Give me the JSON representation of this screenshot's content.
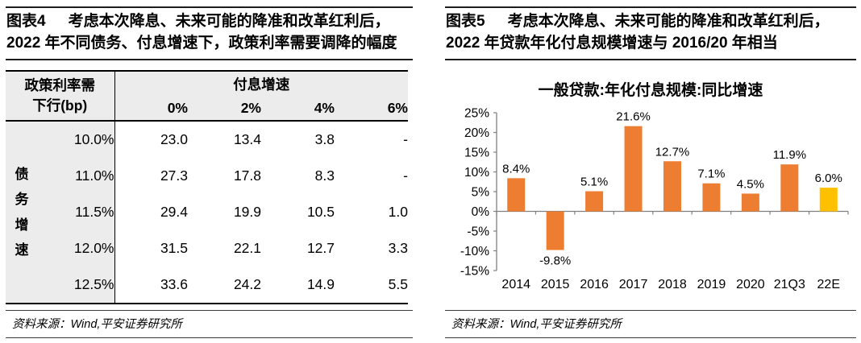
{
  "left_panel": {
    "figure_label": "图表4",
    "title_line1": "考虑本次降息、未来可能的降准和改革红利后，",
    "title_line2": "2022 年不同债务、付息增速下，政策利率需要调降的幅度",
    "source": "资料来源：Wind,平安证券研究所"
  },
  "right_panel": {
    "figure_label": "图表5",
    "title_line1": "考虑本次降息、未来可能的降准和改革红利后，",
    "title_line2": "2022 年贷款年化付息规模增速与 2016/20 年相当",
    "source": "资料来源：Wind,平安证券研究所"
  },
  "chart_data": [
    {
      "type": "table",
      "figure": "图表4",
      "corner_header": "政策利率需\n下行(bp)",
      "group_header": "付息增速",
      "col_headers": [
        "0%",
        "2%",
        "4%",
        "6%"
      ],
      "row_axis_label": "债务增速",
      "row_labels": [
        "10.0%",
        "11.0%",
        "11.5%",
        "12.0%",
        "12.5%"
      ],
      "rows": [
        [
          "23.0",
          "13.4",
          "3.8",
          "-"
        ],
        [
          "27.3",
          "17.8",
          "8.3",
          "-"
        ],
        [
          "29.4",
          "19.9",
          "10.5",
          "1.0"
        ],
        [
          "31.5",
          "22.1",
          "12.7",
          "3.3"
        ],
        [
          "33.6",
          "24.2",
          "14.9",
          "5.5"
        ]
      ],
      "header_bg": "#ececec"
    },
    {
      "type": "bar",
      "title": "一般贷款:年化付息规模:同比增速",
      "categories": [
        "2014",
        "2015",
        "2016",
        "2017",
        "2018",
        "2019",
        "2020",
        "21Q3",
        "22E"
      ],
      "values": [
        8.4,
        -9.8,
        5.1,
        21.6,
        12.7,
        7.1,
        4.5,
        11.9,
        6.0
      ],
      "data_labels": [
        "8.4%",
        "-9.8%",
        "5.1%",
        "21.6%",
        "12.7%",
        "7.1%",
        "4.5%",
        "11.9%",
        "6.0%"
      ],
      "colors": [
        "#ED7D31",
        "#ED7D31",
        "#ED7D31",
        "#ED7D31",
        "#ED7D31",
        "#ED7D31",
        "#ED7D31",
        "#ED7D31",
        "#FFC000"
      ],
      "ylim": [
        -15,
        25
      ],
      "ytick_step": 5,
      "ytick_labels": [
        "25%",
        "20%",
        "15%",
        "10%",
        "5%",
        "0%",
        "-5%",
        "-10%",
        "-15%"
      ],
      "axis_color": "#808080",
      "grid": false,
      "legend": "none",
      "xlabel": "",
      "ylabel": ""
    }
  ]
}
